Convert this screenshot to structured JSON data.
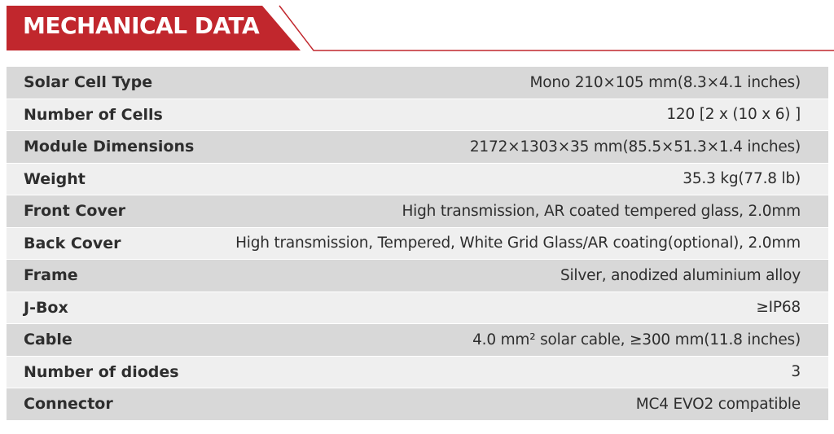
{
  "header": {
    "title": "MECHANICAL DATA",
    "accent_color": "#c1272d"
  },
  "rows": [
    {
      "label": "Solar Cell Type",
      "value": "Mono 210×105 mm(8.3×4.1 inches)"
    },
    {
      "label": "Number of Cells",
      "value": "120 [2 x (10 x 6) ]"
    },
    {
      "label": "Module Dimensions",
      "value": "2172×1303×35 mm(85.5×51.3×1.4 inches)"
    },
    {
      "label": "Weight",
      "value": "35.3 kg(77.8 lb)"
    },
    {
      "label": "Front Cover",
      "value": "High transmission, AR coated tempered glass, 2.0mm"
    },
    {
      "label": "Back Cover",
      "value": "High transmission, Tempered, White Grid Glass/AR coating(optional), 2.0mm"
    },
    {
      "label": "Frame",
      "value": "Silver, anodized aluminium alloy"
    },
    {
      "label": "J-Box",
      "value": "≥IP68"
    },
    {
      "label": "Cable",
      "value": "4.0 mm² solar cable, ≥300 mm(11.8 inches)"
    },
    {
      "label": "Number of diodes",
      "value": "3"
    },
    {
      "label": "Connector",
      "value": "MC4 EVO2 compatible"
    }
  ]
}
